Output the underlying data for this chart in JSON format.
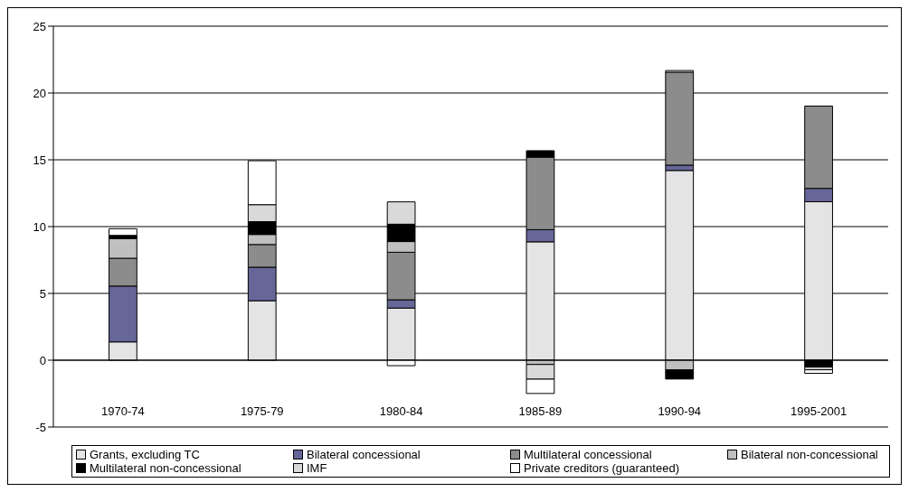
{
  "chart_data": {
    "type": "bar",
    "stacked": true,
    "categories": [
      "1970-74",
      "1975-79",
      "1980-84",
      "1985-89",
      "1990-94",
      "1995-2001"
    ],
    "series": [
      {
        "name": "Grants, excluding TC",
        "color": "#e4e4e4",
        "values": [
          1.37,
          4.45,
          3.9,
          8.86,
          14.2,
          11.86
        ]
      },
      {
        "name": "Bilateral concessional",
        "color": "#666699",
        "values": [
          4.18,
          2.51,
          0.62,
          0.91,
          0.4,
          1.0
        ]
      },
      {
        "name": "Multilateral concessional",
        "color": "#8c8c8c",
        "values": [
          2.08,
          1.7,
          3.56,
          5.43,
          6.96,
          6.16
        ]
      },
      {
        "name": "Bilateral non-concessional",
        "color": "#c0c0c0",
        "values": [
          1.48,
          0.75,
          0.8,
          -0.32,
          -0.73,
          null
        ]
      },
      {
        "name": "Multilateral non-concessional",
        "color": "#000000",
        "values": [
          0.23,
          0.96,
          1.3,
          0.48,
          -0.68,
          -0.52
        ]
      },
      {
        "name": "IMF",
        "color": "#d9d9d9",
        "values": [
          null,
          1.27,
          1.67,
          -1.1,
          null,
          -0.2
        ]
      },
      {
        "name": "Private creditors (guaranteed)",
        "color": "#ffffff",
        "values": [
          0.5,
          3.29,
          -0.41,
          -1.07,
          0.12,
          -0.26
        ]
      }
    ],
    "ylim": [
      -5,
      25
    ],
    "yticks": [
      -5,
      0,
      5,
      10,
      15,
      20,
      25
    ],
    "grid": "y",
    "legend": "bottom"
  }
}
